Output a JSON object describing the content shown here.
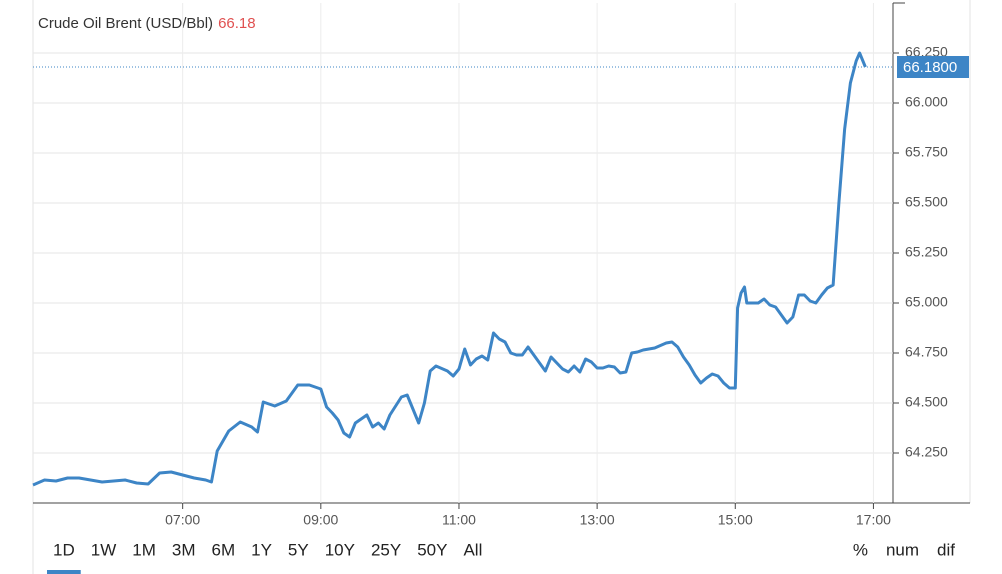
{
  "chart_data": {
    "type": "line",
    "title": "Crude Oil Brent (USD/Bbl)",
    "header_price": 66.18,
    "last_price": {
      "value": 66.18,
      "label": "66.1800"
    },
    "xlim": [
      "04:50",
      "17:17"
    ],
    "xticks": [
      "07:00",
      "09:00",
      "11:00",
      "13:00",
      "15:00",
      "17:00"
    ],
    "ylim": [
      64.0,
      66.5
    ],
    "yticks": [
      {
        "value": 64.25,
        "label": "64.250"
      },
      {
        "value": 64.5,
        "label": "64.500"
      },
      {
        "value": 64.75,
        "label": "64.750"
      },
      {
        "value": 65.0,
        "label": "65.000"
      },
      {
        "value": 65.25,
        "label": "65.250"
      },
      {
        "value": 65.5,
        "label": "65.500"
      },
      {
        "value": 65.75,
        "label": "65.750"
      },
      {
        "value": 66.0,
        "label": "66.000"
      },
      {
        "value": 66.25,
        "label": "66.250"
      }
    ],
    "grid": true,
    "color": "#3d85c6",
    "x": [
      "04:50",
      "05:00",
      "05:10",
      "05:20",
      "05:30",
      "05:40",
      "05:50",
      "06:00",
      "06:10",
      "06:20",
      "06:30",
      "06:40",
      "06:50",
      "07:00",
      "07:10",
      "07:20",
      "07:25",
      "07:30",
      "07:40",
      "07:50",
      "08:00",
      "08:05",
      "08:10",
      "08:20",
      "08:30",
      "08:40",
      "08:50",
      "09:00",
      "09:05",
      "09:10",
      "09:15",
      "09:20",
      "09:25",
      "09:30",
      "09:40",
      "09:45",
      "09:50",
      "09:55",
      "10:00",
      "10:10",
      "10:15",
      "10:20",
      "10:25",
      "10:30",
      "10:35",
      "10:40",
      "10:50",
      "10:55",
      "11:00",
      "11:05",
      "11:10",
      "11:15",
      "11:20",
      "11:25",
      "11:30",
      "11:35",
      "11:40",
      "11:45",
      "11:50",
      "11:55",
      "12:00",
      "12:05",
      "12:10",
      "12:15",
      "12:20",
      "12:30",
      "12:35",
      "12:40",
      "12:45",
      "12:50",
      "12:55",
      "13:00",
      "13:05",
      "13:10",
      "13:15",
      "13:20",
      "13:25",
      "13:30",
      "13:35",
      "13:40",
      "13:50",
      "14:00",
      "14:05",
      "14:10",
      "14:15",
      "14:20",
      "14:25",
      "14:30",
      "14:35",
      "14:40",
      "14:45",
      "14:50",
      "14:55",
      "15:00",
      "15:02",
      "15:05",
      "15:08",
      "15:10",
      "15:20",
      "15:25",
      "15:30",
      "15:35",
      "15:40",
      "15:45",
      "15:50",
      "15:55",
      "16:00",
      "16:05",
      "16:10",
      "16:15",
      "16:20",
      "16:25",
      "16:30",
      "16:35",
      "16:40",
      "16:45",
      "16:48",
      "16:53"
    ],
    "values": [
      64.09,
      64.115,
      64.11,
      64.125,
      64.125,
      64.115,
      64.105,
      64.11,
      64.115,
      64.1,
      64.095,
      64.15,
      64.155,
      64.14,
      64.125,
      64.115,
      64.105,
      64.26,
      64.36,
      64.405,
      64.38,
      64.355,
      64.505,
      64.485,
      64.51,
      64.59,
      64.59,
      64.57,
      64.48,
      64.45,
      64.415,
      64.35,
      64.33,
      64.4,
      64.44,
      64.38,
      64.4,
      64.37,
      64.44,
      64.53,
      64.54,
      64.47,
      64.4,
      64.5,
      64.66,
      64.685,
      64.66,
      64.635,
      64.67,
      64.77,
      64.69,
      64.72,
      64.735,
      64.715,
      64.85,
      64.82,
      64.805,
      64.75,
      64.74,
      64.74,
      64.78,
      64.74,
      64.7,
      64.66,
      64.73,
      64.67,
      64.655,
      64.685,
      64.655,
      64.72,
      64.705,
      64.675,
      64.675,
      64.685,
      64.68,
      64.65,
      64.655,
      64.75,
      64.755,
      64.765,
      64.775,
      64.8,
      64.805,
      64.78,
      64.73,
      64.69,
      64.64,
      64.6,
      64.625,
      64.645,
      64.635,
      64.6,
      64.575,
      64.575,
      64.975,
      65.05,
      65.08,
      65.0,
      65.0,
      65.02,
      64.99,
      64.98,
      64.94,
      64.9,
      64.93,
      65.04,
      65.04,
      65.01,
      65.0,
      65.04,
      65.075,
      65.09,
      65.5,
      65.87,
      66.1,
      66.21,
      66.25,
      66.18
    ]
  },
  "range_buttons": [
    "1D",
    "1W",
    "1M",
    "3M",
    "6M",
    "1Y",
    "5Y",
    "10Y",
    "25Y",
    "50Y",
    "All"
  ],
  "selected_range": "1D",
  "mode_buttons": [
    "%",
    "num",
    "dif"
  ],
  "selected_mode": "num"
}
